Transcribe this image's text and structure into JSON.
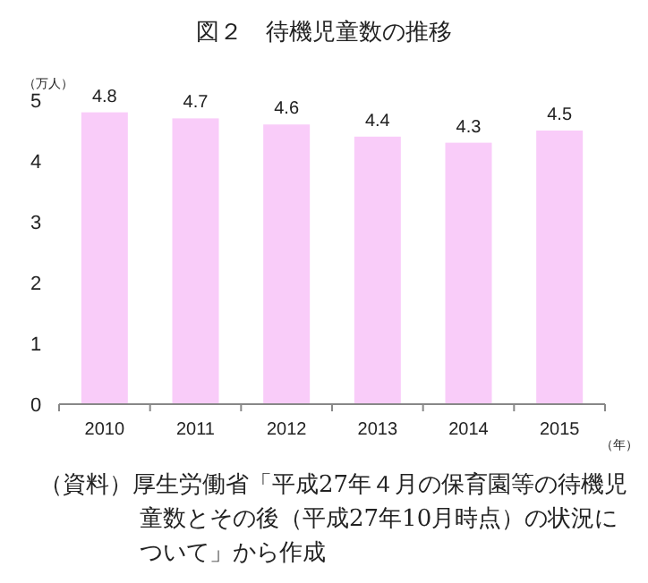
{
  "chart_data": {
    "type": "bar",
    "title": "図２　待機児童数の推移",
    "ylabel": "（万人）",
    "xlabel": "（年）",
    "categories": [
      "2010",
      "2011",
      "2012",
      "2013",
      "2014",
      "2015"
    ],
    "values": [
      4.8,
      4.7,
      4.6,
      4.4,
      4.3,
      4.5
    ],
    "color": "#f9ccf9",
    "ylim": [
      0,
      5
    ],
    "yticks": [
      0,
      1,
      2,
      3,
      4,
      5
    ],
    "data_labels": true,
    "annotations": [
      "（資料）厚生労働省「平成27年４月の保育園等の待機児童数とその後（平成27年10月時点）の状況について」から作成"
    ]
  }
}
